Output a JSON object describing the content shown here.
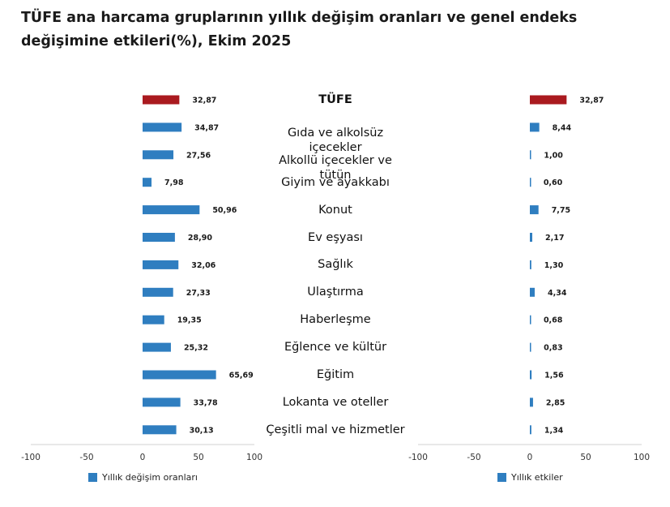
{
  "title": "TÜFE ana harcama gruplarının yıllık değişim oranları ve genel endeks değişimine etkileri(%), Ekim 2025",
  "colors": {
    "highlight": "#aa1a1f",
    "bar": "#2f7ec0",
    "axis": "#d0d0d0"
  },
  "chart_data": [
    {
      "type": "bar",
      "orientation": "horizontal",
      "categories": [
        "TÜFE",
        "Gıda ve alkolsüz içecekler",
        "Alkollü içecekler ve tütün",
        "Giyim ve ayakkabı",
        "Konut",
        "Ev eşyası",
        "Sağlık",
        "Ulaştırma",
        "Haberleşme",
        "Eğlence ve kültür",
        "Eğitim",
        "Lokanta ve oteller",
        "Çeşitli mal ve hizmetler"
      ],
      "values": [
        32.87,
        34.87,
        27.56,
        7.98,
        50.96,
        28.9,
        32.06,
        27.33,
        19.35,
        25.32,
        65.69,
        33.78,
        30.13
      ],
      "value_labels": [
        "32,87",
        "34,87",
        "27,56",
        "7,98",
        "50,96",
        "28,90",
        "32,06",
        "27,33",
        "19,35",
        "25,32",
        "65,69",
        "33,78",
        "30,13"
      ],
      "xlim": [
        -100,
        100
      ],
      "xticks": [
        -100,
        -50,
        0,
        50,
        100
      ],
      "legend": "Yıllık değişim oranları",
      "legend_position": "bottom-left"
    },
    {
      "type": "bar",
      "orientation": "horizontal",
      "categories": [
        "TÜFE",
        "Gıda ve alkolsüz içecekler",
        "Alkollü içecekler ve tütün",
        "Giyim ve ayakkabı",
        "Konut",
        "Ev eşyası",
        "Sağlık",
        "Ulaştırma",
        "Haberleşme",
        "Eğlence ve kültür",
        "Eğitim",
        "Lokanta ve oteller",
        "Çeşitli mal ve hizmetler"
      ],
      "values": [
        32.87,
        8.44,
        1.0,
        0.6,
        7.75,
        2.17,
        1.3,
        4.34,
        0.68,
        0.83,
        1.56,
        2.85,
        1.34
      ],
      "value_labels": [
        "32,87",
        "8,44",
        "1,00",
        "0,60",
        "7,75",
        "2,17",
        "1,30",
        "4,34",
        "0,68",
        "0,83",
        "1,56",
        "2,85",
        "1,34"
      ],
      "xlim": [
        -100,
        100
      ],
      "xticks": [
        -100,
        -50,
        0,
        50,
        100
      ],
      "legend": "Yıllık etkiler",
      "legend_position": "bottom-left"
    }
  ],
  "category_display": [
    [
      "TÜFE"
    ],
    [
      "Gıda ve alkolsüz",
      "içecekler"
    ],
    [
      "Alkollü içecekler ve",
      "tütün"
    ],
    [
      "Giyim ve ayakkabı"
    ],
    [
      "Konut"
    ],
    [
      "Ev eşyası"
    ],
    [
      "Sağlık"
    ],
    [
      "Ulaştırma"
    ],
    [
      "Haberleşme"
    ],
    [
      "Eğlence ve kültür"
    ],
    [
      "Eğitim"
    ],
    [
      "Lokanta ve oteller"
    ],
    [
      "Çeşitli mal ve hizmetler"
    ]
  ]
}
